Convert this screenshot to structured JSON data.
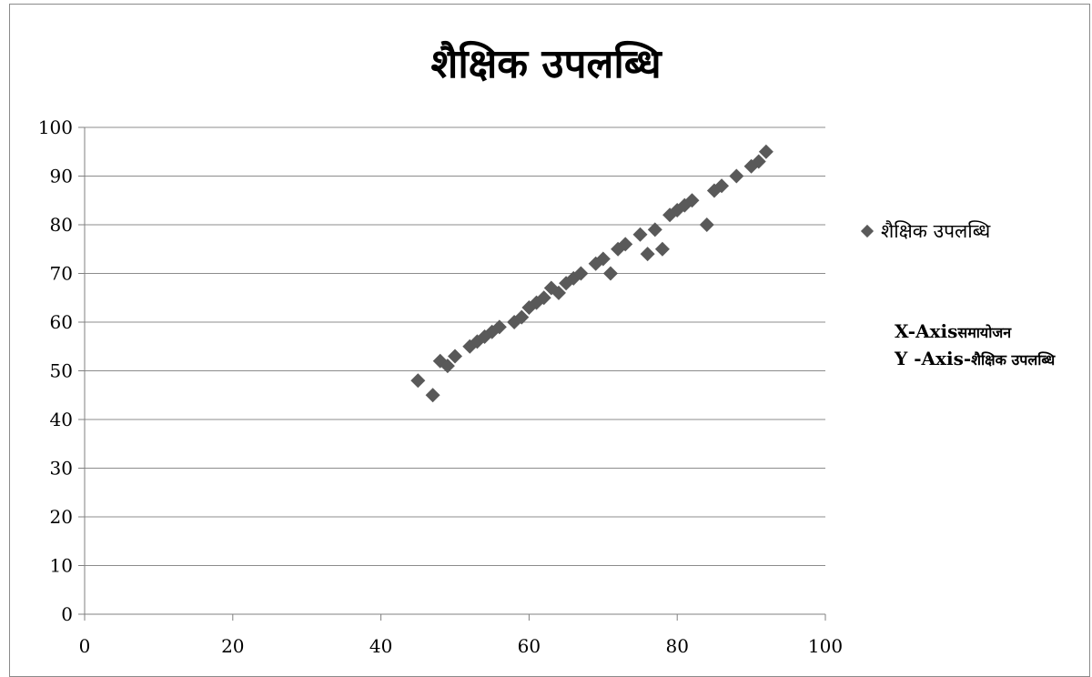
{
  "chart_data": {
    "type": "scatter",
    "title": "शैक्षिक उपलब्धि",
    "xlim": [
      0,
      100
    ],
    "ylim": [
      0,
      100
    ],
    "x_ticks": [
      "0",
      "20",
      "40",
      "60",
      "80",
      "100"
    ],
    "y_ticks": [
      "0",
      "10",
      "20",
      "30",
      "40",
      "50",
      "60",
      "70",
      "80",
      "90",
      "100"
    ],
    "grid": "horizontal",
    "legend_position": "right",
    "marker_color": "#595959",
    "series": [
      {
        "name": "शैक्षिक उपलब्धि",
        "points": [
          [
            45,
            48
          ],
          [
            47,
            45
          ],
          [
            48,
            52
          ],
          [
            49,
            51
          ],
          [
            50,
            53
          ],
          [
            52,
            55
          ],
          [
            53,
            56
          ],
          [
            54,
            57
          ],
          [
            55,
            58
          ],
          [
            56,
            59
          ],
          [
            58,
            60
          ],
          [
            59,
            61
          ],
          [
            60,
            63
          ],
          [
            61,
            64
          ],
          [
            62,
            65
          ],
          [
            63,
            67
          ],
          [
            64,
            66
          ],
          [
            65,
            68
          ],
          [
            66,
            69
          ],
          [
            67,
            70
          ],
          [
            69,
            72
          ],
          [
            70,
            73
          ],
          [
            71,
            70
          ],
          [
            72,
            75
          ],
          [
            73,
            76
          ],
          [
            75,
            78
          ],
          [
            76,
            74
          ],
          [
            77,
            79
          ],
          [
            78,
            75
          ],
          [
            79,
            82
          ],
          [
            80,
            83
          ],
          [
            81,
            84
          ],
          [
            82,
            85
          ],
          [
            84,
            80
          ],
          [
            85,
            87
          ],
          [
            86,
            88
          ],
          [
            88,
            90
          ],
          [
            90,
            92
          ],
          [
            91,
            93
          ],
          [
            92,
            95
          ]
        ]
      }
    ]
  },
  "legend": {
    "label": "शैक्षिक उपलब्धि"
  },
  "axis_note": {
    "x_line_prefix": "X-Axis",
    "x_line_hindi": "समायोजन",
    "y_line_prefix": "Y -Axis-",
    "y_line_hindi": "शैक्षिक उपलब्धि"
  }
}
